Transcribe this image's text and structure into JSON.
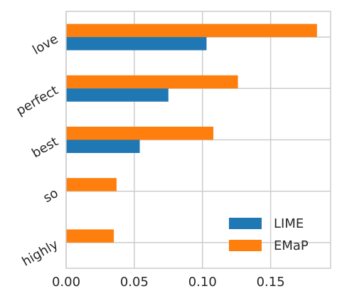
{
  "chart_data": {
    "type": "bar",
    "orientation": "horizontal",
    "title": "",
    "xlabel": "",
    "ylabel": "",
    "categories": [
      "love",
      "perfect",
      "best",
      "so",
      "highly"
    ],
    "series": [
      {
        "name": "LIME",
        "color": "#1f77b4",
        "values": [
          0.103,
          0.075,
          0.054,
          0.0,
          0.0
        ]
      },
      {
        "name": "EMaP",
        "color": "#ff7f0e",
        "values": [
          0.184,
          0.126,
          0.108,
          0.037,
          0.035
        ]
      }
    ],
    "xlim": [
      0.0,
      0.194
    ],
    "xticks": [
      0.0,
      0.05,
      0.1,
      0.15
    ],
    "xtick_labels": [
      "0.00",
      "0.05",
      "0.10",
      "0.15"
    ],
    "grid": true,
    "legend_position": "lower-right"
  }
}
